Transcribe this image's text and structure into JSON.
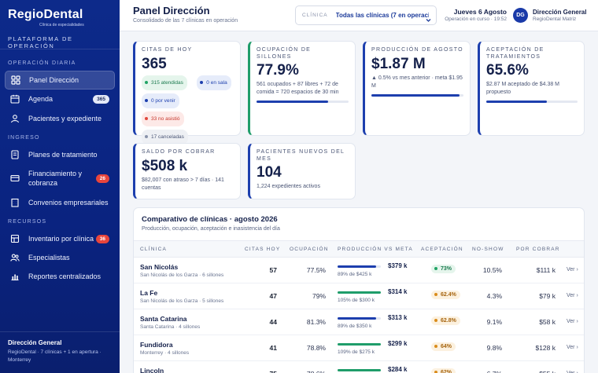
{
  "app": {
    "logo": "RegioDental",
    "logo_sub": "Clínica de especialidades",
    "platform": "PLATAFORMA DE OPERACIÓN"
  },
  "sidebar": {
    "sections": [
      {
        "label": "OPERACIÓN DIARIA",
        "items": [
          {
            "label": "Panel Dirección",
            "icon": "grid-icon",
            "active": true
          },
          {
            "label": "Agenda",
            "icon": "calendar-icon",
            "badge": "365"
          },
          {
            "label": "Pacientes y expediente",
            "icon": "user-icon"
          }
        ]
      },
      {
        "label": "INGRESO",
        "items": [
          {
            "label": "Planes de tratamiento",
            "icon": "document-icon"
          },
          {
            "label": "Financiamiento y cobranza",
            "icon": "card-icon",
            "badge": "26"
          },
          {
            "label": "Convenios empresariales",
            "icon": "building-icon"
          }
        ]
      },
      {
        "label": "RECURSOS",
        "items": [
          {
            "label": "Inventario por clínica",
            "icon": "box-icon",
            "badge": "36"
          },
          {
            "label": "Especialistas",
            "icon": "users-icon"
          },
          {
            "label": "Reportes centralizados",
            "icon": "chart-icon"
          }
        ]
      }
    ],
    "footer": {
      "title": "Dirección General",
      "subtitle": "RegioDental · 7 clínicas + 1 en apertura · Monterrey"
    }
  },
  "header": {
    "title": "Panel Dirección",
    "subtitle": "Consolidado de las 7 clínicas en operación",
    "clinic_label": "CLÍNICA",
    "clinic_value": "Todas las clínicas (7 en operación)",
    "date": "Jueves 6 Agosto",
    "status": "Operación en curso · 19:52",
    "avatar": "DG",
    "user_name": "Dirección General",
    "user_sub": "RegioDental Matriz"
  },
  "kpis": {
    "citas": {
      "label": "CITAS DE HOY",
      "value": "365",
      "pills": [
        "315 atendidas",
        "0 en sala",
        "0 por venir",
        "33 no asistió",
        "17 canceladas"
      ]
    },
    "ocupacion": {
      "label": "OCUPACIÓN DE SILLONES",
      "value": "77.9%",
      "desc": "561 ocupados + 87 libres + 72 de comida = 720 espacios de 30 min",
      "progress": 0.779
    },
    "produccion": {
      "label": "PRODUCCIÓN DE AGOSTO",
      "value": "$1.87 M",
      "desc": "▲ 0.5% vs mes anterior · meta $1.95 M",
      "progress": 0.96
    },
    "aceptacion": {
      "label": "ACEPTACIÓN DE TRATAMIENTOS",
      "value": "65.6%",
      "desc": "$2.87 M aceptado de $4.38 M propuesto",
      "progress": 0.656
    },
    "saldo": {
      "label": "SALDO POR COBRAR",
      "value": "$508 k",
      "desc": "$82,007 con atraso > 7 días · 141 cuentas"
    },
    "nuevos": {
      "label": "PACIENTES NUEVOS DEL MES",
      "value": "104",
      "desc": "1,224 expedientes activos"
    }
  },
  "table": {
    "title": "Comparativo de clínicas · agosto 2026",
    "subtitle": "Producción, ocupación, aceptación e inasistencia del día",
    "columns": [
      "CLÍNICA",
      "CITAS HOY",
      "OCUPACIÓN",
      "PRODUCCIÓN VS META",
      "ACEPTACIÓN",
      "NO-SHOW",
      "POR COBRAR"
    ],
    "row_action": "Ver ›",
    "rows": [
      {
        "name": "San Nicolás",
        "loc": "San Nicolás de los Garza · 6 sillones",
        "citas": "57",
        "ocupacion": "77.5%",
        "prod": "$379 k",
        "meta": "89% de $425 k",
        "pct": 0.89,
        "aceptacion": "73%",
        "acc_status": "good",
        "noshow": "10.5%",
        "cobrar": "$111 k"
      },
      {
        "name": "La Fe",
        "loc": "San Nicolás de los Garza · 5 sillones",
        "citas": "47",
        "ocupacion": "79%",
        "prod": "$314 k",
        "meta": "105% de $300 k",
        "pct": 1.0,
        "aceptacion": "62.4%",
        "acc_status": "warn",
        "noshow": "4.3%",
        "cobrar": "$79 k"
      },
      {
        "name": "Santa Catarina",
        "loc": "Santa Catarina · 4 sillones",
        "citas": "44",
        "ocupacion": "81.3%",
        "prod": "$313 k",
        "meta": "89% de $350 k",
        "pct": 0.89,
        "aceptacion": "62.8%",
        "acc_status": "warn",
        "noshow": "9.1%",
        "cobrar": "$58 k"
      },
      {
        "name": "Fundidora",
        "loc": "Monterrey · 4 sillones",
        "citas": "41",
        "ocupacion": "78.8%",
        "prod": "$299 k",
        "meta": "109% de $275 k",
        "pct": 1.0,
        "aceptacion": "64%",
        "acc_status": "warn",
        "noshow": "9.8%",
        "cobrar": "$128 k"
      },
      {
        "name": "Lincoln",
        "loc": "",
        "citas": "75",
        "ocupacion": "78.6%",
        "prod": "$284 k",
        "meta": "",
        "pct": 1.0,
        "aceptacion": "62%",
        "acc_status": "warn",
        "noshow": "6.7%",
        "cobrar": "$55 k"
      }
    ]
  },
  "colors": {
    "sidebar": "#0d2a8a",
    "accent": "#1d3fae",
    "green": "#1f9d6a",
    "red": "#e8453c"
  }
}
